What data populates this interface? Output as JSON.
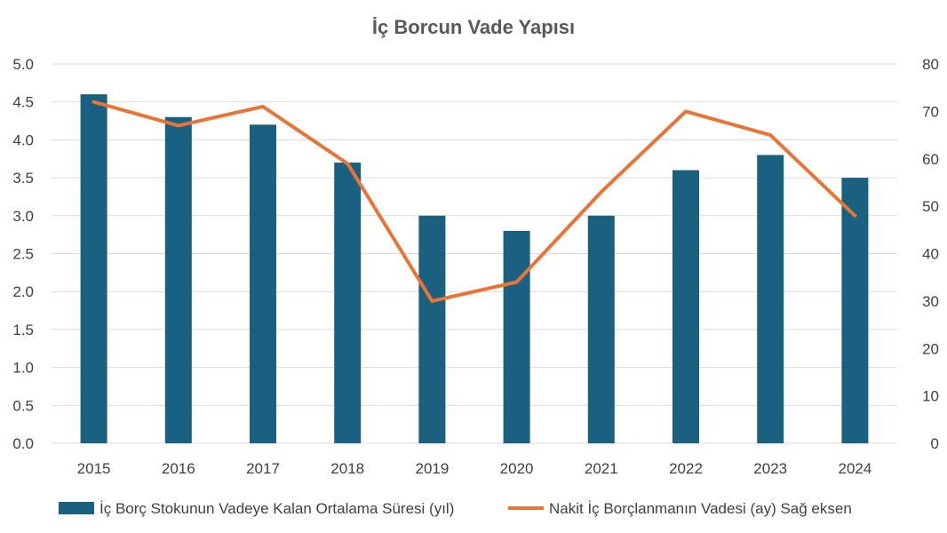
{
  "chart_data": {
    "type": "bar",
    "title": "İç Borcun Vade Yapısı",
    "categories": [
      "2015",
      "2016",
      "2017",
      "2018",
      "2019",
      "2020",
      "2021",
      "2022",
      "2023",
      "2024"
    ],
    "series": [
      {
        "name": "İç Borç Stokunun Vadeye Kalan Ortalama Süresi (yıl)",
        "type": "bar",
        "axis": "left",
        "color": "#1a6080",
        "values": [
          4.6,
          4.3,
          4.2,
          3.7,
          3.0,
          2.8,
          3.0,
          3.6,
          3.8,
          3.5
        ]
      },
      {
        "name": "Nakit İç Borçlanmanın Vadesi (ay) Sağ eksen",
        "type": "line",
        "axis": "right",
        "color": "#e87435",
        "values": [
          72,
          67,
          71,
          59,
          30,
          34,
          53,
          70,
          65,
          48
        ]
      }
    ],
    "y_left": {
      "ylim": [
        0,
        5
      ],
      "ticks": [
        "0.0",
        "0.5",
        "1.0",
        "1.5",
        "2.0",
        "2.5",
        "3.0",
        "3.5",
        "4.0",
        "4.5",
        "5.0"
      ]
    },
    "y_right": {
      "ylim": [
        0,
        80
      ],
      "ticks": [
        "0",
        "10",
        "20",
        "30",
        "40",
        "50",
        "60",
        "70",
        "80"
      ]
    },
    "grid": true,
    "legend": "bottom"
  }
}
